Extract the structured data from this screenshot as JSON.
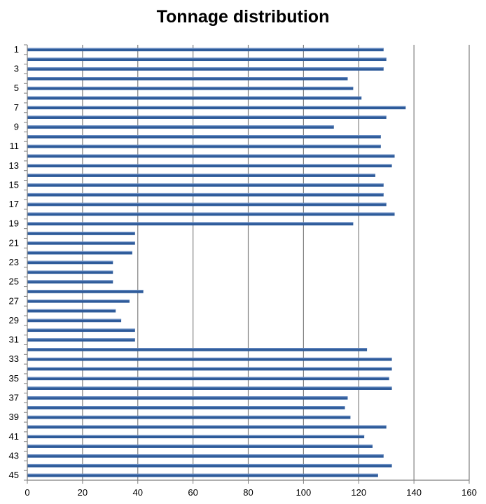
{
  "chart_data": {
    "type": "bar",
    "orientation": "horizontal",
    "title": "Tonnage distribution",
    "xlabel": "",
    "ylabel": "",
    "xlim": [
      0,
      160
    ],
    "x_ticks": [
      0,
      20,
      40,
      60,
      80,
      100,
      120,
      140,
      160
    ],
    "grid": "vertical",
    "legend": "none",
    "categories": [
      1,
      2,
      3,
      4,
      5,
      6,
      7,
      8,
      9,
      10,
      11,
      12,
      13,
      14,
      15,
      16,
      17,
      18,
      19,
      20,
      21,
      22,
      23,
      24,
      25,
      26,
      27,
      28,
      29,
      30,
      31,
      32,
      33,
      34,
      35,
      36,
      37,
      38,
      39,
      40,
      41,
      42,
      43,
      44,
      45
    ],
    "category_labels": [
      "1",
      "3",
      "5",
      "7",
      "9",
      "11",
      "13",
      "15",
      "17",
      "19",
      "21",
      "23",
      "25",
      "27",
      "29",
      "31",
      "33",
      "35",
      "37",
      "39",
      "41",
      "43",
      "45"
    ],
    "values": [
      129,
      130,
      129,
      116,
      118,
      121,
      137,
      130,
      111,
      128,
      128,
      133,
      132,
      126,
      129,
      129,
      130,
      133,
      118,
      39,
      39,
      38,
      31,
      31,
      31,
      42,
      37,
      32,
      34,
      39,
      39,
      123,
      132,
      132,
      131,
      132,
      116,
      115,
      117,
      130,
      122,
      125,
      129,
      132,
      127
    ],
    "colors": {
      "bar": "#2E5B9A",
      "bar_highlight": "#6C8FC4",
      "grid": "#7F7F7F",
      "axis": "#7F7F7F"
    }
  }
}
